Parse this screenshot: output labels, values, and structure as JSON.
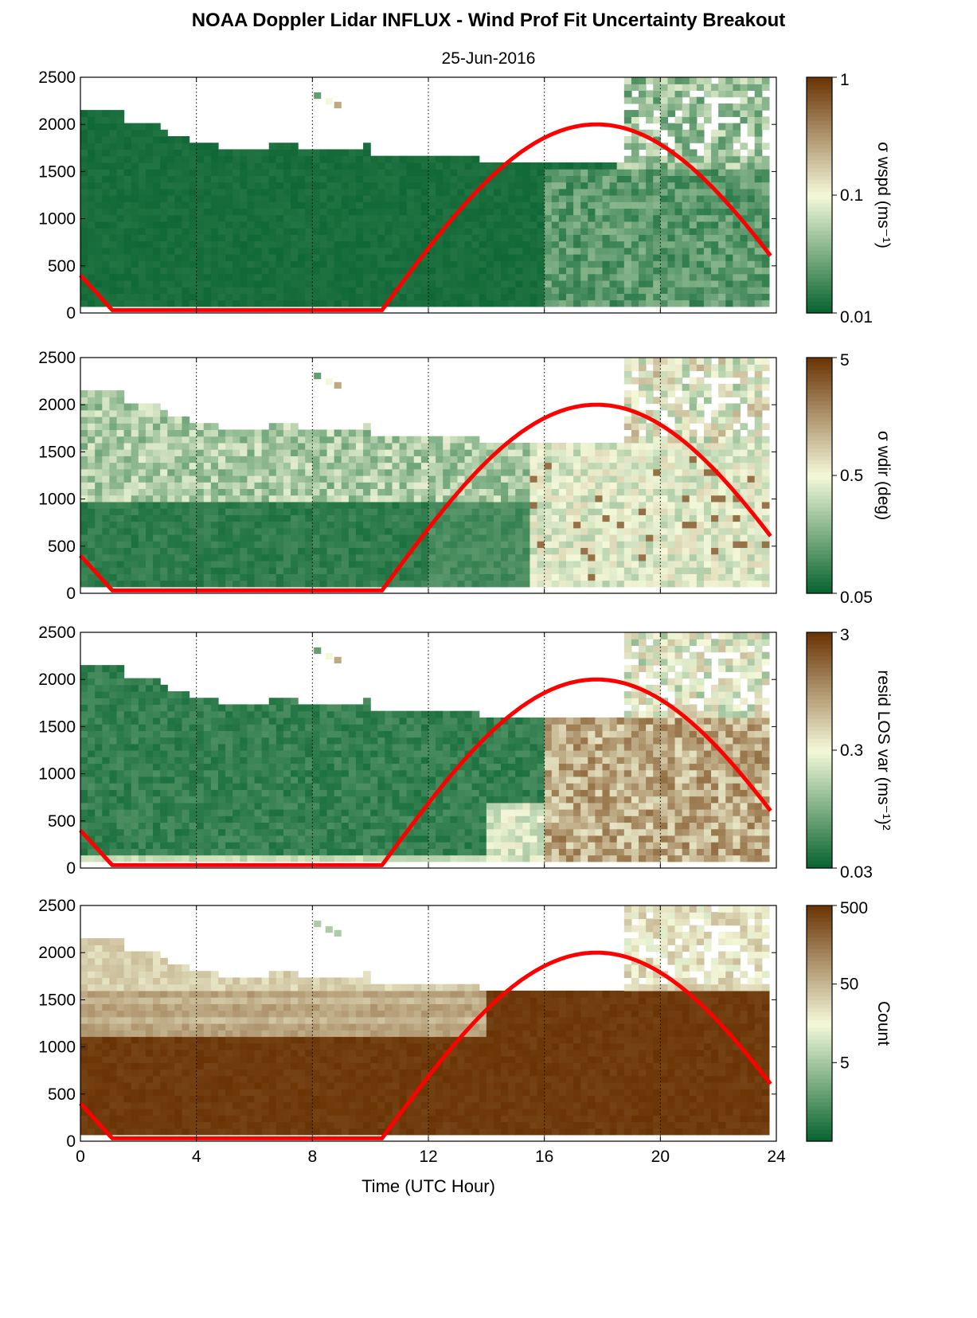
{
  "title": "NOAA Doppler Lidar INFLUX - Wind Prof Fit Uncertainty Breakout",
  "subtitle": "25-Jun-2016",
  "xlabel": "Time (UTC Hour)",
  "colors": {
    "low": "#05622e",
    "mid": "#f4f8d9",
    "high": "#6a3304",
    "sun_curve": "#ff0000"
  },
  "chart_data": [
    {
      "type": "heatmap",
      "name": "wspd",
      "colorbar_label": "σ wspd (ms⁻¹)",
      "colorbar_scale": "log",
      "colorbar_ticks": [
        "1",
        "0.1",
        "0.01"
      ],
      "colorbar_range": [
        0.01,
        1
      ],
      "x_ticks": [
        "0",
        "4",
        "8",
        "12",
        "16",
        "20",
        "24"
      ],
      "y_ticks": [
        "2500",
        "2000",
        "1500",
        "1000",
        "500",
        "0"
      ],
      "xlim": [
        0,
        24
      ],
      "ylim": [
        0,
        2500
      ],
      "grid": "vertical dotted at 4, 8, 12, 16, 20"
    },
    {
      "type": "heatmap",
      "name": "wdir",
      "colorbar_label": "σ wdir (deg)",
      "colorbar_scale": "log",
      "colorbar_ticks": [
        "5",
        "0.5",
        "0.05"
      ],
      "colorbar_range": [
        0.05,
        5
      ],
      "x_ticks": [
        "0",
        "4",
        "8",
        "12",
        "16",
        "20",
        "24"
      ],
      "y_ticks": [
        "2500",
        "2000",
        "1500",
        "1000",
        "500",
        "0"
      ],
      "xlim": [
        0,
        24
      ],
      "ylim": [
        0,
        2500
      ],
      "grid": "vertical dotted at 4, 8, 12, 16, 20"
    },
    {
      "type": "heatmap",
      "name": "resid",
      "colorbar_label": "resid LOS var (ms⁻¹)²",
      "colorbar_scale": "log",
      "colorbar_ticks": [
        "3",
        "0.3",
        "0.03"
      ],
      "colorbar_range": [
        0.03,
        3
      ],
      "x_ticks": [
        "0",
        "4",
        "8",
        "12",
        "16",
        "20",
        "24"
      ],
      "y_ticks": [
        "2500",
        "2000",
        "1500",
        "1000",
        "500",
        "0"
      ],
      "xlim": [
        0,
        24
      ],
      "ylim": [
        0,
        2500
      ],
      "grid": "vertical dotted at 4, 8, 12, 16, 20"
    },
    {
      "type": "heatmap",
      "name": "count",
      "colorbar_label": "Count",
      "colorbar_scale": "log",
      "colorbar_ticks": [
        "500",
        "50",
        "5"
      ],
      "colorbar_range": [
        0.5,
        500
      ],
      "x_ticks": [
        "0",
        "4",
        "8",
        "12",
        "16",
        "20",
        "24"
      ],
      "y_ticks": [
        "2500",
        "2000",
        "1500",
        "1000",
        "500",
        "0"
      ],
      "xlim": [
        0,
        24
      ],
      "ylim": [
        0,
        2500
      ],
      "grid": "vertical dotted at 4, 8, 12, 16, 20"
    }
  ],
  "sun_curve": {
    "description_x": [
      0,
      1.1,
      10.4,
      12,
      14,
      16,
      17.8,
      20,
      22,
      23.8
    ],
    "y": [
      400,
      30,
      30,
      550,
      1300,
      1800,
      2000,
      1800,
      1200,
      550
    ]
  }
}
